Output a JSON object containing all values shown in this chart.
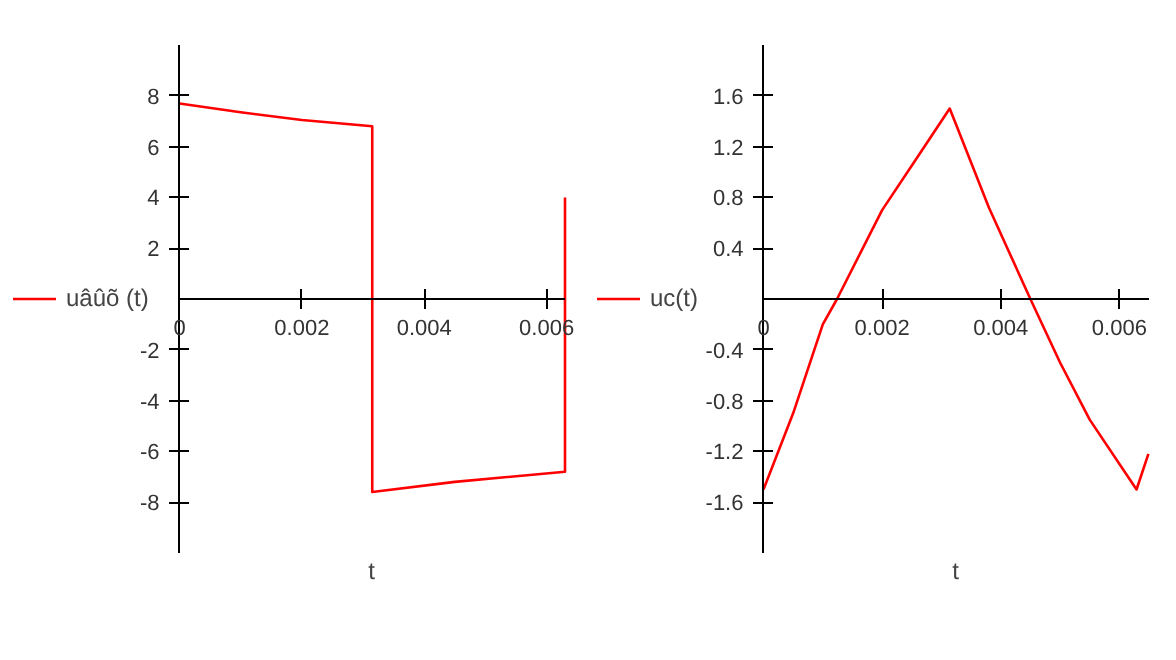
{
  "chart_data": [
    {
      "type": "line",
      "xlabel": "t",
      "legend": "left",
      "grid": false,
      "marker": "none",
      "line_style": "solid",
      "series": [
        {
          "name": "uâûõ (t)",
          "color": "#ff0000",
          "x": [
            0,
            0.001,
            0.002,
            0.00315,
            0.00315,
            0.0045,
            0.0063,
            0.0063
          ],
          "values": [
            7.7,
            7.35,
            7.05,
            6.8,
            -7.6,
            -7.2,
            -6.8,
            4.0
          ]
        }
      ],
      "xlim": [
        0,
        0.0063
      ],
      "ylim": [
        -10,
        10
      ],
      "xticks": [
        0,
        0.002,
        0.004,
        0.006
      ],
      "yticks": [
        -8,
        -6,
        -4,
        -2,
        2,
        4,
        6,
        8
      ]
    },
    {
      "type": "line",
      "xlabel": "t",
      "legend": "left",
      "grid": false,
      "marker": "none",
      "line_style": "solid",
      "series": [
        {
          "name": "uc(t)",
          "color": "#ff0000",
          "x": [
            0,
            0.0005,
            0.001,
            0.00124,
            0.002,
            0.0026,
            0.00314,
            0.0038,
            0.0045,
            0.005,
            0.0055,
            0.00629,
            0.00649
          ],
          "values": [
            -1.5,
            -0.9,
            -0.2,
            0,
            0.7,
            1.12,
            1.5,
            0.72,
            0,
            -0.5,
            -0.95,
            -1.5,
            -1.22
          ]
        }
      ],
      "xlim": [
        0,
        0.0065
      ],
      "ylim": [
        -2,
        2
      ],
      "xticks": [
        0,
        0.002,
        0.004,
        0.006
      ],
      "yticks": [
        -1.6,
        -1.2,
        -0.8,
        -0.4,
        0.4,
        0.8,
        1.2,
        1.6
      ]
    }
  ]
}
